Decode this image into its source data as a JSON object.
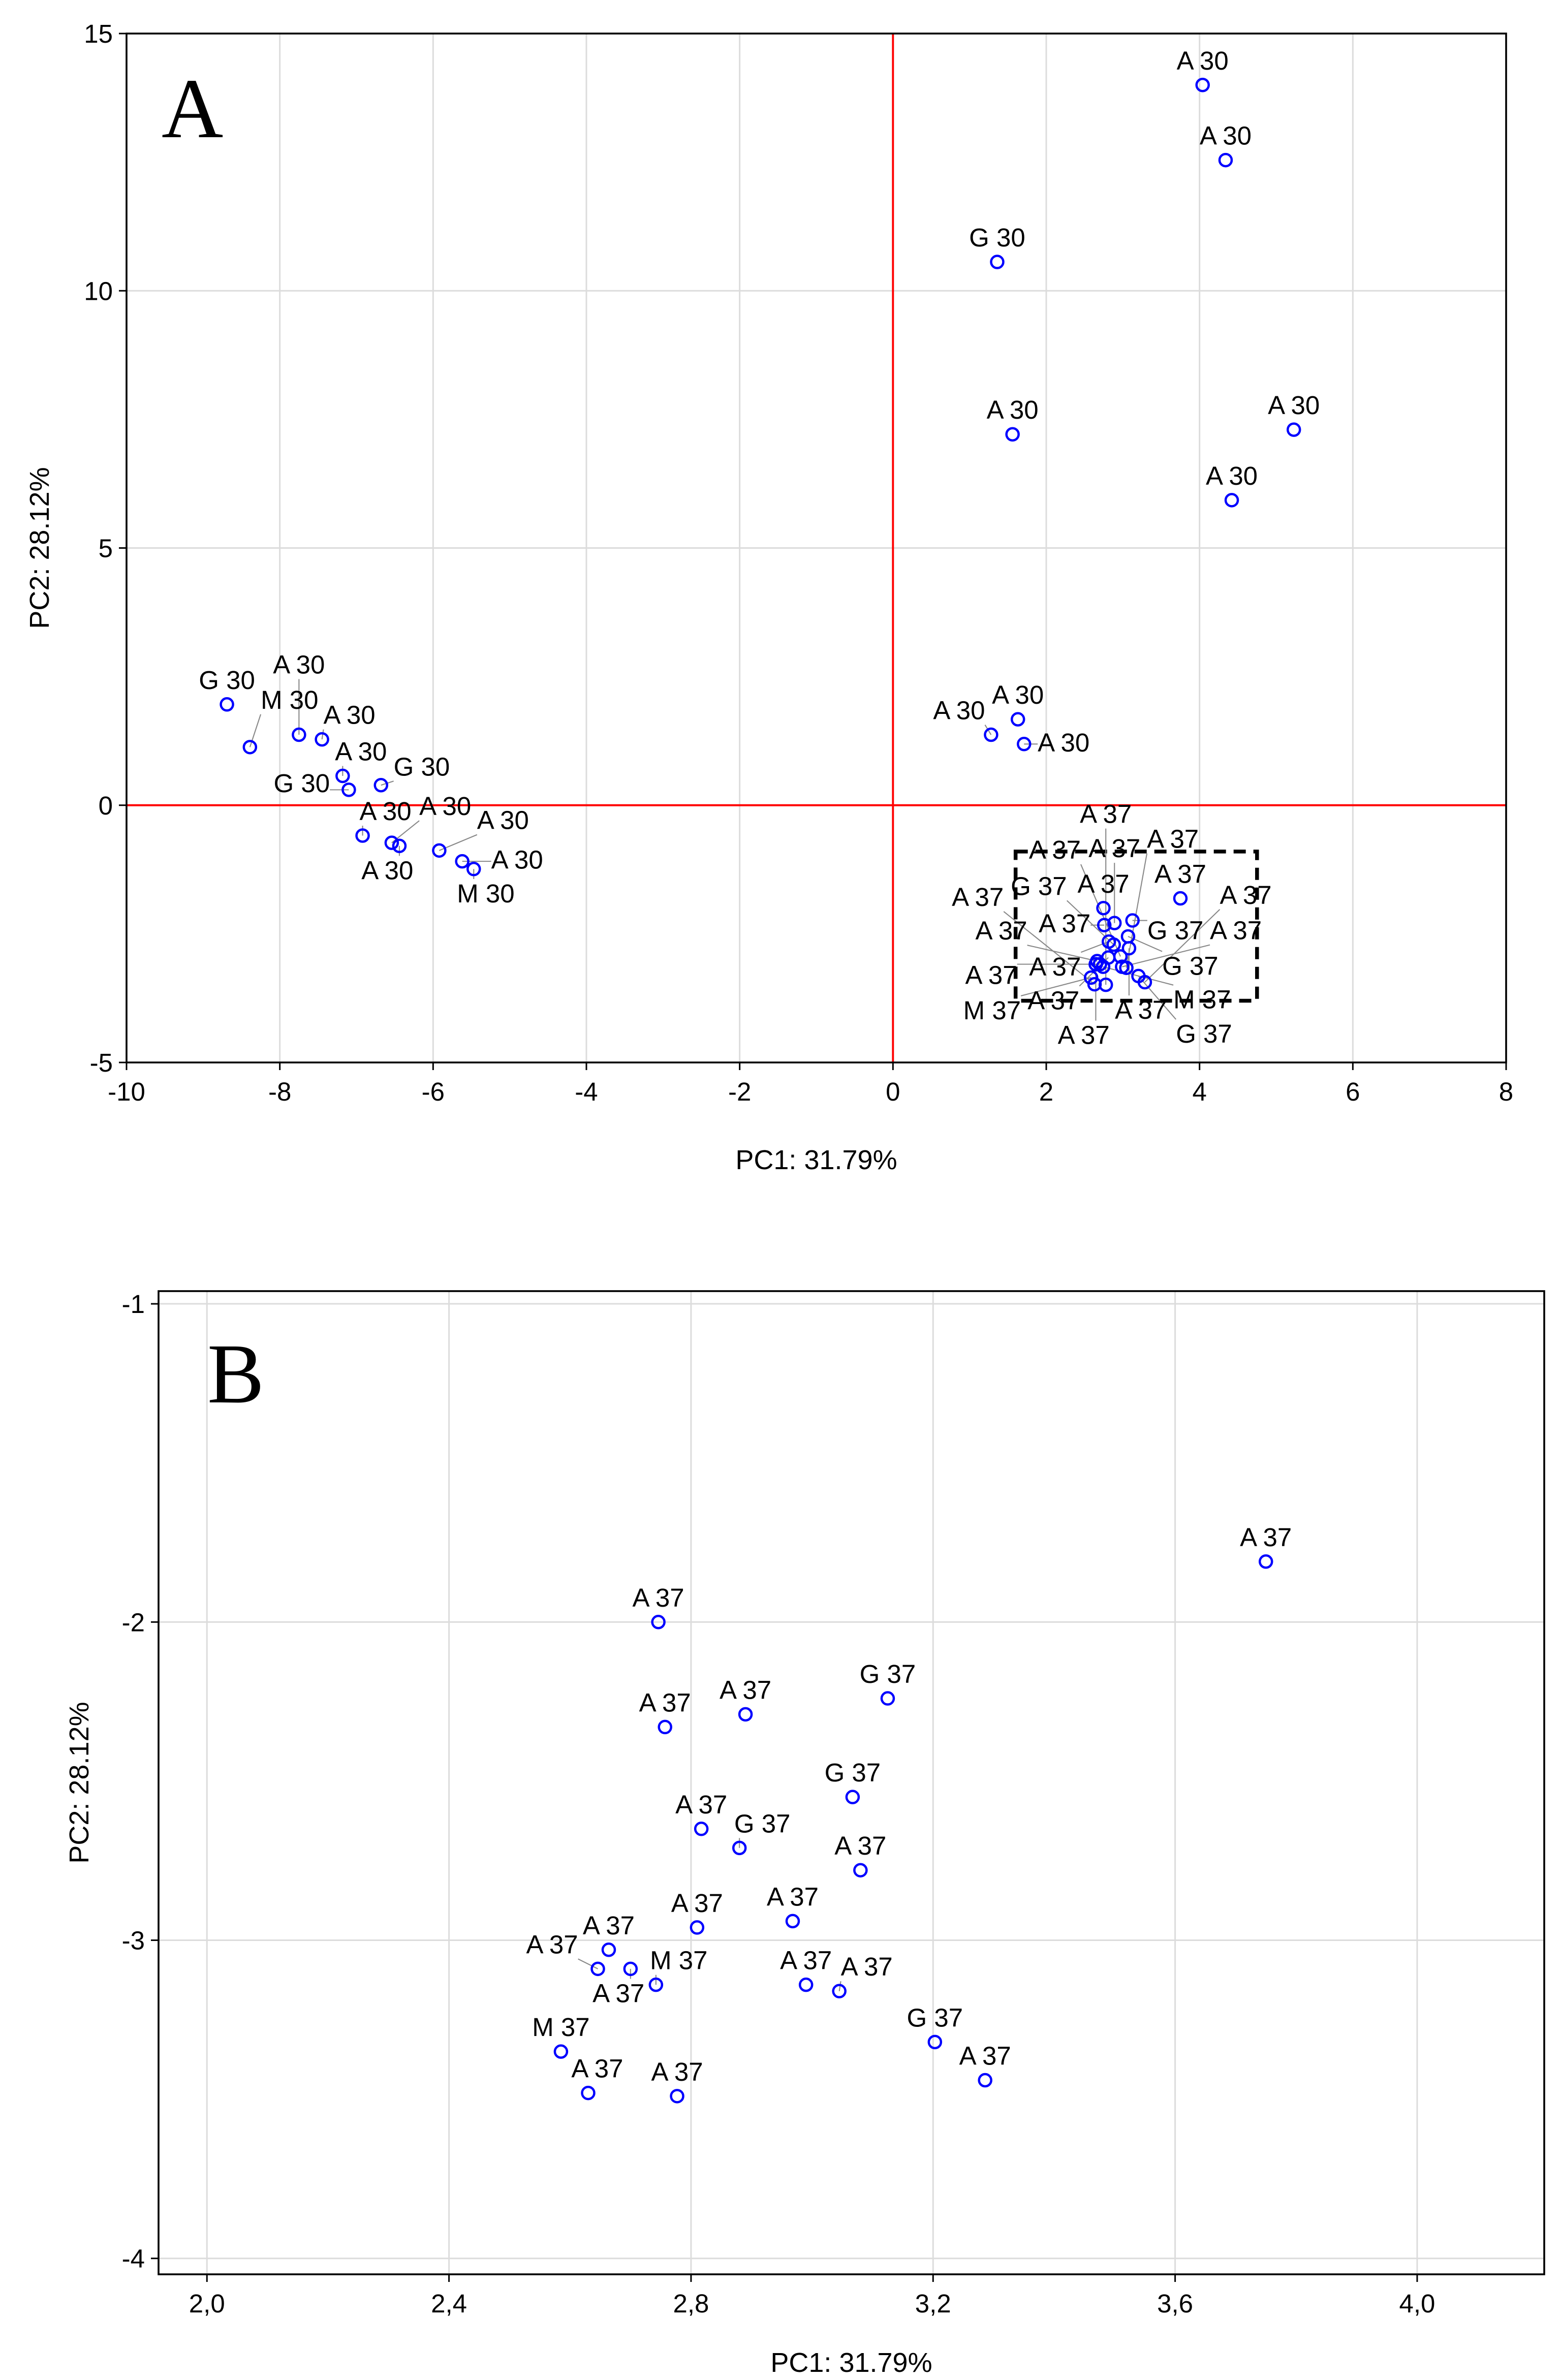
{
  "chart_data": [
    {
      "type": "scatter",
      "panel_label": "A",
      "xlabel": "PC1: 31.79%",
      "ylabel": "PC2: 28.12%",
      "xlim": [
        -10,
        8
      ],
      "ylim": [
        -5,
        15
      ],
      "xticks": [
        -10,
        -8,
        -6,
        -4,
        -2,
        0,
        2,
        4,
        6,
        8
      ],
      "yticks": [
        -5,
        0,
        5,
        10,
        15
      ],
      "xtick_labels": [
        "-10",
        "-8",
        "-6",
        "-4",
        "-2",
        "0",
        "2",
        "4",
        "6",
        "8"
      ],
      "ytick_labels": [
        "-5",
        "0",
        "5",
        "10",
        "15"
      ],
      "grid": true,
      "reference_lines": {
        "x": 0,
        "y": 0,
        "color": "#ff0000"
      },
      "highlight_box": {
        "x": [
          1.6,
          4.75
        ],
        "y": [
          -3.8,
          -0.9
        ],
        "style": "dashed"
      },
      "marker_color": "#0000ff",
      "points": [
        {
          "label": "A 30",
          "x": 4.04,
          "y": 14.0
        },
        {
          "label": "A 30",
          "x": 4.34,
          "y": 12.54
        },
        {
          "label": "G 30",
          "x": 1.36,
          "y": 10.56
        },
        {
          "label": "A 30",
          "x": 1.56,
          "y": 7.21
        },
        {
          "label": "A 30",
          "x": 5.23,
          "y": 7.3
        },
        {
          "label": "A 30",
          "x": 4.42,
          "y": 5.93
        },
        {
          "label": "A 30",
          "x": 1.63,
          "y": 1.67
        },
        {
          "label": "A 30",
          "x": 1.28,
          "y": 1.37
        },
        {
          "label": "A 30",
          "x": 1.71,
          "y": 1.19
        },
        {
          "label": "G 30",
          "x": -8.69,
          "y": 1.96
        },
        {
          "label": "M 30",
          "x": -8.39,
          "y": 1.13
        },
        {
          "label": "A 30",
          "x": -7.75,
          "y": 1.37
        },
        {
          "label": "A 30",
          "x": -7.45,
          "y": 1.28
        },
        {
          "label": "A 30",
          "x": -7.18,
          "y": 0.57
        },
        {
          "label": "G 30",
          "x": -7.1,
          "y": 0.3
        },
        {
          "label": "G 30",
          "x": -6.68,
          "y": 0.39
        },
        {
          "label": "A 30",
          "x": -6.92,
          "y": -0.59
        },
        {
          "label": "A 30",
          "x": -6.54,
          "y": -0.73
        },
        {
          "label": "A 30",
          "x": -6.44,
          "y": -0.79
        },
        {
          "label": "A 30",
          "x": -5.92,
          "y": -0.88
        },
        {
          "label": "A 30",
          "x": -5.62,
          "y": -1.09
        },
        {
          "label": "M 30",
          "x": -5.47,
          "y": -1.24
        },
        {
          "label": "A 37",
          "x": 3.75,
          "y": -1.81
        },
        {
          "label": "A 37",
          "x": 2.746,
          "y": -2.0
        },
        {
          "label": "A 37",
          "x": 2.757,
          "y": -2.33
        },
        {
          "label": "A 37",
          "x": 2.89,
          "y": -2.29
        },
        {
          "label": "G 37",
          "x": 3.125,
          "y": -2.24
        },
        {
          "label": "G 37",
          "x": 3.067,
          "y": -2.55
        },
        {
          "label": "A 37",
          "x": 2.817,
          "y": -2.65
        },
        {
          "label": "G 37",
          "x": 2.88,
          "y": -2.71
        },
        {
          "label": "A 37",
          "x": 3.08,
          "y": -2.78
        },
        {
          "label": "A 37",
          "x": 2.81,
          "y": -2.96
        },
        {
          "label": "A 37",
          "x": 2.968,
          "y": -2.94
        },
        {
          "label": "A 37",
          "x": 2.664,
          "y": -3.03
        },
        {
          "label": "A 37",
          "x": 2.646,
          "y": -3.09
        },
        {
          "label": "A 37",
          "x": 2.7,
          "y": -3.09
        },
        {
          "label": "M 37",
          "x": 2.742,
          "y": -3.14
        },
        {
          "label": "A 37",
          "x": 2.99,
          "y": -3.14
        },
        {
          "label": "A 37",
          "x": 3.045,
          "y": -3.16
        },
        {
          "label": "M 37",
          "x": 2.585,
          "y": -3.35
        },
        {
          "label": "G 37",
          "x": 3.203,
          "y": -3.32
        },
        {
          "label": "A 37",
          "x": 2.63,
          "y": -3.48
        },
        {
          "label": "A 37",
          "x": 2.777,
          "y": -3.49
        },
        {
          "label": "A 37",
          "x": 3.286,
          "y": -3.44
        }
      ]
    },
    {
      "type": "scatter",
      "panel_label": "B",
      "xlabel": "PC1: 31.79%",
      "ylabel": "PC2: 28.12%",
      "xlim": [
        1.92,
        4.21
      ],
      "ylim": [
        -4.05,
        -0.96
      ],
      "xticks": [
        2.0,
        2.4,
        2.8,
        3.2,
        3.6,
        4.0
      ],
      "yticks": [
        -4,
        -3,
        -2,
        -1
      ],
      "xtick_labels": [
        "2,0",
        "2,4",
        "2,8",
        "3,2",
        "3,6",
        "4,0"
      ],
      "ytick_labels": [
        "-4",
        "-3",
        "-2",
        "-1"
      ],
      "grid": true,
      "marker_color": "#0000ff",
      "points": [
        {
          "label": "A 37",
          "x": 3.75,
          "y": -1.81
        },
        {
          "label": "A 37",
          "x": 2.746,
          "y": -2.0
        },
        {
          "label": "A 37",
          "x": 2.757,
          "y": -2.33
        },
        {
          "label": "A 37",
          "x": 2.89,
          "y": -2.29
        },
        {
          "label": "G 37",
          "x": 3.125,
          "y": -2.24
        },
        {
          "label": "G 37",
          "x": 3.067,
          "y": -2.55
        },
        {
          "label": "A 37",
          "x": 2.817,
          "y": -2.65
        },
        {
          "label": "G 37",
          "x": 2.88,
          "y": -2.71
        },
        {
          "label": "A 37",
          "x": 3.08,
          "y": -2.78
        },
        {
          "label": "A 37",
          "x": 2.81,
          "y": -2.96
        },
        {
          "label": "A 37",
          "x": 2.968,
          "y": -2.94
        },
        {
          "label": "A 37",
          "x": 2.664,
          "y": -3.03
        },
        {
          "label": "A 37",
          "x": 2.646,
          "y": -3.09
        },
        {
          "label": "A 37",
          "x": 2.7,
          "y": -3.09
        },
        {
          "label": "M 37",
          "x": 2.742,
          "y": -3.14
        },
        {
          "label": "A 37",
          "x": 2.99,
          "y": -3.14
        },
        {
          "label": "A 37",
          "x": 3.045,
          "y": -3.16
        },
        {
          "label": "M 37",
          "x": 2.585,
          "y": -3.35
        },
        {
          "label": "G 37",
          "x": 3.203,
          "y": -3.32
        },
        {
          "label": "A 37",
          "x": 2.63,
          "y": -3.48
        },
        {
          "label": "A 37",
          "x": 2.777,
          "y": -3.49
        },
        {
          "label": "A 37",
          "x": 3.286,
          "y": -3.44
        }
      ]
    }
  ]
}
